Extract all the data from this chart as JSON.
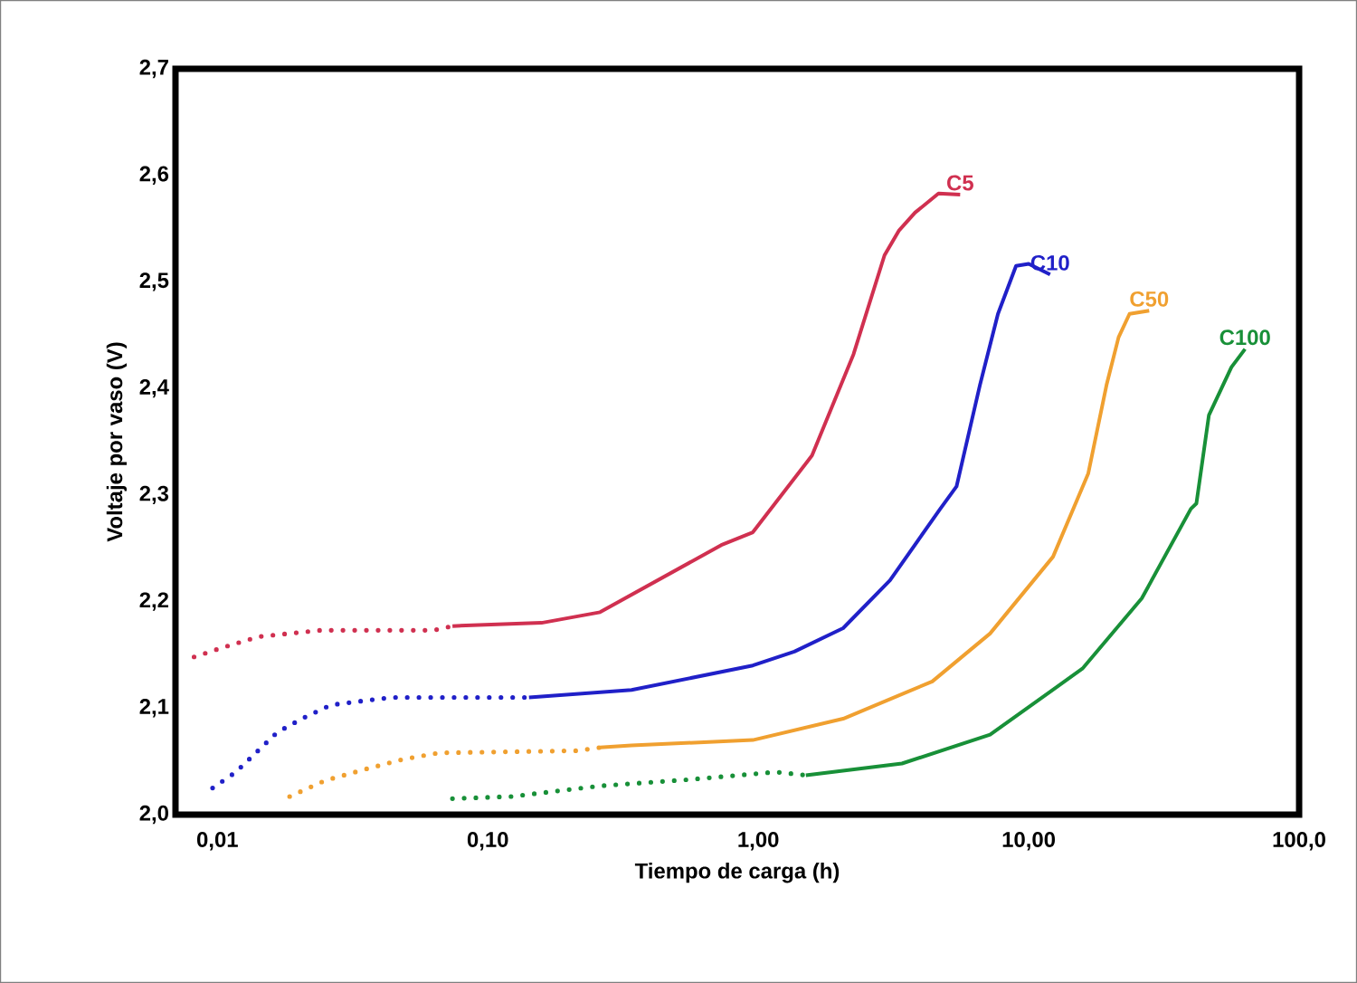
{
  "chart_data": {
    "type": "line",
    "xlabel": "Tiempo de carga (h)",
    "ylabel": "Voltaje por vaso (V)",
    "log": "x",
    "grid": false,
    "marker": "none",
    "xlim": [
      0.007,
      100
    ],
    "ylim": [
      2.0,
      2.7
    ],
    "xticks": [
      {
        "value": 0.01,
        "label": "0,01"
      },
      {
        "value": 0.1,
        "label": "0,10"
      },
      {
        "value": 1,
        "label": "1,00"
      },
      {
        "value": 10,
        "label": "10,00"
      },
      {
        "value": 100,
        "label": "100,0"
      }
    ],
    "yticks": [
      {
        "value": 2.0,
        "label": "2,0"
      },
      {
        "value": 2.1,
        "label": "2,1"
      },
      {
        "value": 2.2,
        "label": "2,2"
      },
      {
        "value": 2.3,
        "label": "2,3"
      },
      {
        "value": 2.4,
        "label": "2,4"
      },
      {
        "value": 2.5,
        "label": "2,5"
      },
      {
        "value": 2.6,
        "label": "2,6"
      },
      {
        "value": 2.7,
        "label": "2,7"
      }
    ],
    "series": [
      {
        "color": "#d03050",
        "line_style": "dotted",
        "x": [
          0.0082,
          0.0105,
          0.0142,
          0.024,
          0.063,
          0.074
        ],
        "values": [
          2.148,
          2.157,
          2.167,
          2.173,
          2.173,
          2.177
        ]
      },
      {
        "name": "C5",
        "color": "#d03050",
        "line_style": "solid",
        "x": [
          0.074,
          0.158,
          0.26,
          0.73,
          0.955,
          1.58,
          2.25,
          2.93,
          3.31,
          3.8,
          4.64,
          5.58
        ],
        "values": [
          2.177,
          2.18,
          2.19,
          2.253,
          2.265,
          2.337,
          2.432,
          2.525,
          2.548,
          2.565,
          2.583,
          2.582
        ]
      },
      {
        "color": "#2020c8",
        "line_style": "dotted",
        "x": [
          0.0096,
          0.0117,
          0.0166,
          0.0205,
          0.0263,
          0.044,
          0.126,
          0.142
        ],
        "values": [
          2.025,
          2.04,
          2.077,
          2.09,
          2.103,
          2.11,
          2.11,
          2.11
        ]
      },
      {
        "name": "C10",
        "color": "#2020c8",
        "line_style": "solid",
        "x": [
          0.142,
          0.34,
          0.955,
          1.36,
          2.06,
          3.07,
          4.71,
          5.41,
          6.6,
          7.7,
          8.98,
          10.0,
          12.0
        ],
        "values": [
          2.11,
          2.117,
          2.14,
          2.153,
          2.175,
          2.22,
          2.287,
          2.308,
          2.403,
          2.47,
          2.515,
          2.517,
          2.507
        ]
      },
      {
        "color": "#f0a030",
        "line_style": "dotted",
        "x": [
          0.0185,
          0.025,
          0.0357,
          0.0487,
          0.066,
          0.215,
          0.26
        ],
        "values": [
          2.017,
          2.032,
          2.043,
          2.052,
          2.058,
          2.06,
          2.063
        ]
      },
      {
        "name": "C50",
        "color": "#f0a030",
        "line_style": "solid",
        "x": [
          0.26,
          0.34,
          0.955,
          2.06,
          4.4,
          7.2,
          12.3,
          16.6,
          19.4,
          21.5,
          23.6,
          27.9
        ],
        "values": [
          2.063,
          2.065,
          2.07,
          2.09,
          2.125,
          2.17,
          2.242,
          2.32,
          2.403,
          2.448,
          2.47,
          2.473
        ]
      },
      {
        "color": "#189038",
        "line_style": "dotted",
        "x": [
          0.074,
          0.122,
          0.26,
          0.56,
          1.16,
          1.5
        ],
        "values": [
          2.015,
          2.017,
          2.027,
          2.033,
          2.04,
          2.037
        ]
      },
      {
        "name": "C100",
        "color": "#189038",
        "line_style": "solid",
        "x": [
          1.5,
          3.4,
          7.2,
          15.8,
          26.2,
          39.8,
          41.7,
          46.4,
          56.2,
          63.1
        ],
        "values": [
          2.037,
          2.048,
          2.075,
          2.137,
          2.203,
          2.287,
          2.292,
          2.375,
          2.42,
          2.437
        ]
      }
    ]
  }
}
